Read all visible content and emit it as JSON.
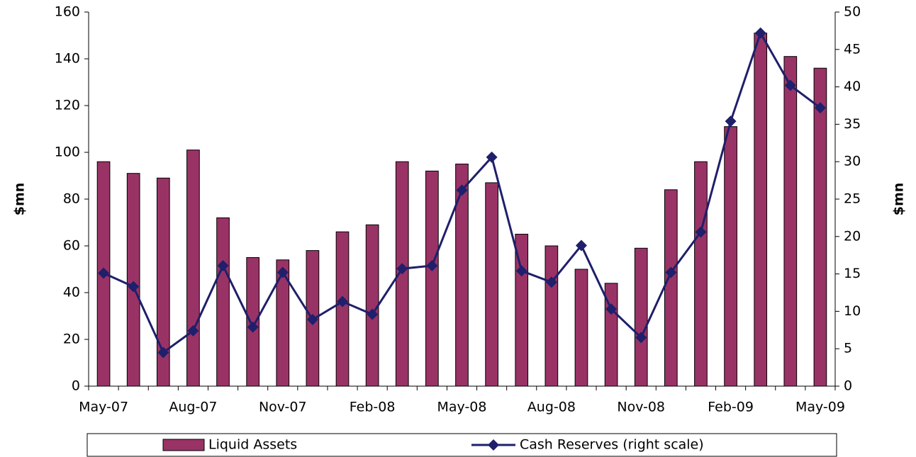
{
  "chart_data": {
    "type": "bar_line",
    "categories": [
      "May-07",
      null,
      null,
      "Aug-07",
      null,
      null,
      "Nov-07",
      null,
      null,
      "Feb-08",
      null,
      null,
      "May-08",
      null,
      null,
      "Aug-08",
      null,
      null,
      "Nov-08",
      null,
      null,
      "Feb-09",
      null,
      null,
      "May-09"
    ],
    "y_label": "$mn",
    "y2_label": "$mn",
    "series": [
      {
        "name": "Liquid Assets",
        "type": "bar",
        "color": "#993366",
        "values": [
          96,
          91,
          89,
          101,
          72,
          55,
          54,
          58,
          66,
          69,
          96,
          92,
          95,
          87,
          65,
          60,
          50,
          44,
          59,
          84,
          96,
          111,
          151,
          141,
          136
        ]
      },
      {
        "name": "Cash Reserves (right scale)",
        "type": "line",
        "axis": "y2",
        "color": "#1f1f6b",
        "values": [
          15.1,
          13.3,
          4.5,
          7.4,
          16.1,
          7.9,
          15.2,
          8.9,
          11.3,
          9.6,
          15.7,
          16.1,
          26.2,
          30.6,
          15.4,
          13.9,
          18.8,
          10.3,
          6.5,
          15.2,
          20.6,
          35.4,
          47.2,
          40.2,
          37.2
        ]
      }
    ],
    "ylim": [
      0,
      160
    ],
    "yticks": [
      0,
      20,
      40,
      60,
      80,
      100,
      120,
      140,
      160
    ],
    "y2lim": [
      0,
      50
    ],
    "y2ticks": [
      0,
      5,
      10,
      15,
      20,
      25,
      30,
      35,
      40,
      45,
      50
    ],
    "legend": "bottom"
  }
}
